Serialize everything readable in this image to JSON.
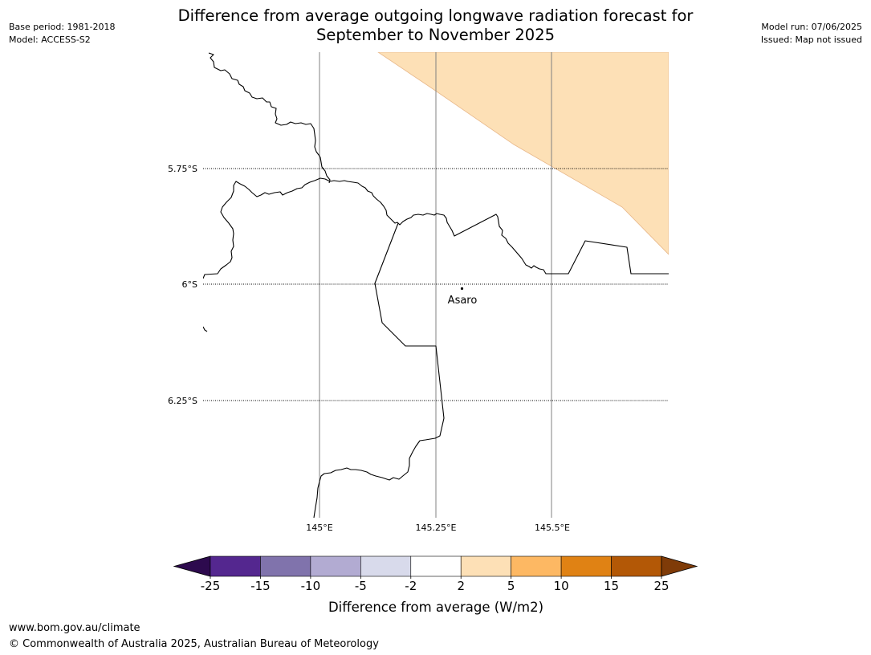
{
  "header": {
    "base_period": "Base period: 1981-2018",
    "model": "Model: ACCESS-S2",
    "model_run": "Model run: 07/06/2025",
    "issued": "Issued: Map not issued",
    "title_line1": "Difference from average outgoing longwave radiation forecast for",
    "title_line2": "September to November 2025"
  },
  "map": {
    "lat_labels": [
      "5.75°S",
      "6°S",
      "6.25°S"
    ],
    "lon_labels": [
      "145°E",
      "145.25°E",
      "145.5°E"
    ],
    "place_name": "Asaro",
    "shaded_category": "2 to 5",
    "shaded_color": "#fde0b6"
  },
  "legend": {
    "title": "Difference from average (W/m2)",
    "ticks": [
      "-25",
      "-15",
      "-10",
      "-5",
      "-2",
      "2",
      "5",
      "10",
      "15",
      "25"
    ],
    "colors": [
      "#2d0a4e",
      "#54278f",
      "#8073ac",
      "#b2abd2",
      "#d8daeb",
      "#ffffff",
      "#fde0b6",
      "#fdb863",
      "#e08214",
      "#b35806",
      "#7f3b08"
    ]
  },
  "footer": {
    "url": "www.bom.gov.au/climate",
    "copyright": "© Commonwealth of Australia 2025, Australian Bureau of Meteorology"
  }
}
